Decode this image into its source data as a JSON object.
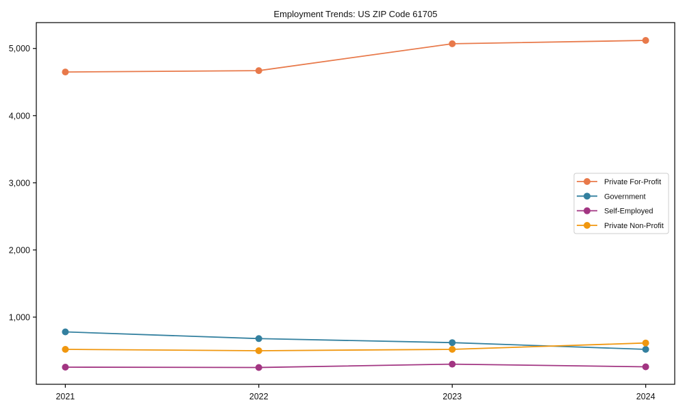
{
  "page": {
    "background": "#ffffff",
    "spine_color": "#000000",
    "text_color": "#111111"
  },
  "chart_data": {
    "type": "line",
    "title": "Employment Trends: US ZIP Code 61705",
    "xlabel": "",
    "ylabel": "",
    "x": [
      2021,
      2022,
      2023,
      2024
    ],
    "x_tick_labels": [
      "2021",
      "2022",
      "2023",
      "2024"
    ],
    "y_ticks": [
      1000,
      2000,
      3000,
      4000,
      5000
    ],
    "y_tick_labels": [
      "1,000",
      "2,000",
      "3,000",
      "4,000",
      "5,000"
    ],
    "xlim": [
      2020.85,
      2024.15
    ],
    "ylim": [
      0,
      5385
    ],
    "grid": false,
    "legend_position": "center right",
    "legend_border_color": "#cccccc",
    "series": [
      {
        "name": "Private For-Profit",
        "color": "#E8794A",
        "values": [
          4650,
          4670,
          5070,
          5120
        ]
      },
      {
        "name": "Government",
        "color": "#33809F",
        "values": [
          780,
          680,
          620,
          520
        ]
      },
      {
        "name": "Self-Employed",
        "color": "#A23582",
        "values": [
          255,
          250,
          300,
          260
        ]
      },
      {
        "name": "Private Non-Profit",
        "color": "#F0970F",
        "values": [
          520,
          500,
          520,
          615
        ]
      }
    ]
  }
}
